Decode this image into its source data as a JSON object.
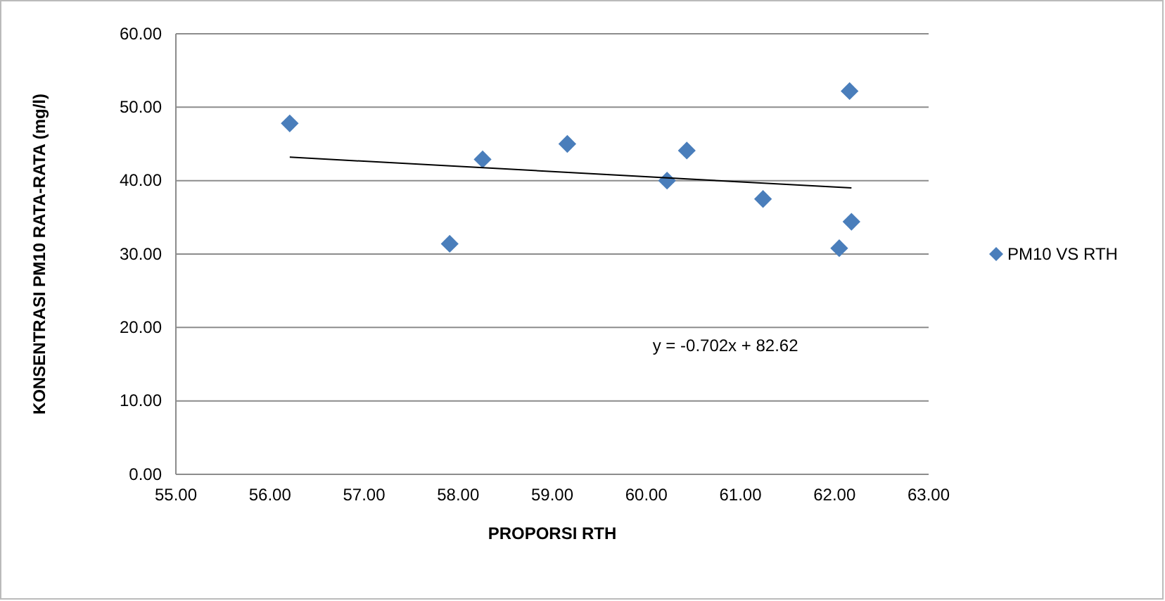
{
  "chart_data": {
    "type": "scatter",
    "xlabel": "PROPORSI RTH",
    "ylabel": "KONSENTRASI PM10 RATA-RATA (mg/l)",
    "series": [
      {
        "name": "PM10 VS RTH",
        "color": "#4a7ebb",
        "marker": "diamond",
        "x": [
          56.21,
          57.91,
          58.26,
          59.16,
          60.22,
          60.43,
          61.24,
          62.16,
          62.18,
          62.05
        ],
        "values": [
          47.8,
          31.4,
          42.9,
          45.0,
          40.0,
          44.1,
          37.5,
          52.2,
          34.4,
          30.8
        ]
      },
      {
        "type": "line",
        "color": "#000000",
        "marker": "none",
        "line_style": "solid",
        "x": [
          56.21,
          62.18
        ],
        "values": [
          43.2,
          39.0
        ]
      }
    ],
    "annotations": [
      "y = -0.702x + 82.62"
    ],
    "xlim": [
      55,
      63
    ],
    "ylim": [
      0,
      60
    ],
    "xticks": [
      {
        "value": 55,
        "label": "55.00"
      },
      {
        "value": 56,
        "label": "56.00"
      },
      {
        "value": 57,
        "label": "57.00"
      },
      {
        "value": 58,
        "label": "58.00"
      },
      {
        "value": 59,
        "label": "59.00"
      },
      {
        "value": 60,
        "label": "60.00"
      },
      {
        "value": 61,
        "label": "61.00"
      },
      {
        "value": 62,
        "label": "62.00"
      },
      {
        "value": 63,
        "label": "63.00"
      }
    ],
    "yticks": [
      {
        "value": 0,
        "label": "0.00"
      },
      {
        "value": 10,
        "label": "10.00"
      },
      {
        "value": 20,
        "label": "20.00"
      },
      {
        "value": 30,
        "label": "30.00"
      },
      {
        "value": 40,
        "label": "40.00"
      },
      {
        "value": 50,
        "label": "50.00"
      },
      {
        "value": 60,
        "label": "60.00"
      }
    ],
    "grid": "y",
    "legend": "right"
  }
}
